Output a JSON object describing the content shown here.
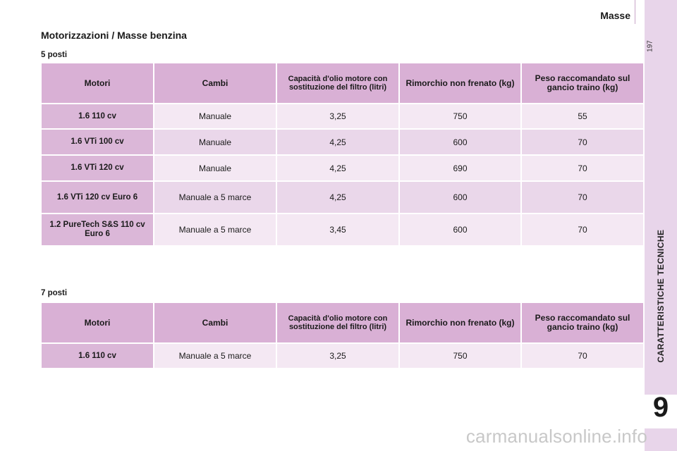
{
  "header": {
    "section_name": "Masse",
    "page_number": "197"
  },
  "sidebar": {
    "chapter_label": "CARATTERISTICHE TECNICHE",
    "chapter_number": "9"
  },
  "title": "Motorizzazioni / Masse benzina",
  "columns": [
    "Motori",
    "Cambi",
    "Capacità d'olio motore con sostituzione del filtro (litri)",
    "Rimorchio non frenato (kg)",
    "Peso raccomandato sul gancio traino (kg)"
  ],
  "tables": [
    {
      "label": "5 posti",
      "rows": [
        [
          "1.6 110 cv",
          "Manuale",
          "3,25",
          "750",
          "55"
        ],
        [
          "1.6 VTi 100 cv",
          "Manuale",
          "4,25",
          "600",
          "70"
        ],
        [
          "1.6 VTi 120 cv",
          "Manuale",
          "4,25",
          "690",
          "70"
        ],
        [
          "1.6 VTi 120 cv Euro 6",
          "Manuale a 5 marce",
          "4,25",
          "600",
          "70"
        ],
        [
          "1.2 PureTech S&S 110 cv Euro 6",
          "Manuale a 5 marce",
          "3,45",
          "600",
          "70"
        ]
      ]
    },
    {
      "label": "7 posti",
      "rows": [
        [
          "1.6 110 cv",
          "Manuale a 5 marce",
          "3,25",
          "750",
          "70"
        ]
      ]
    }
  ],
  "watermark": "carmanualsonline.info"
}
